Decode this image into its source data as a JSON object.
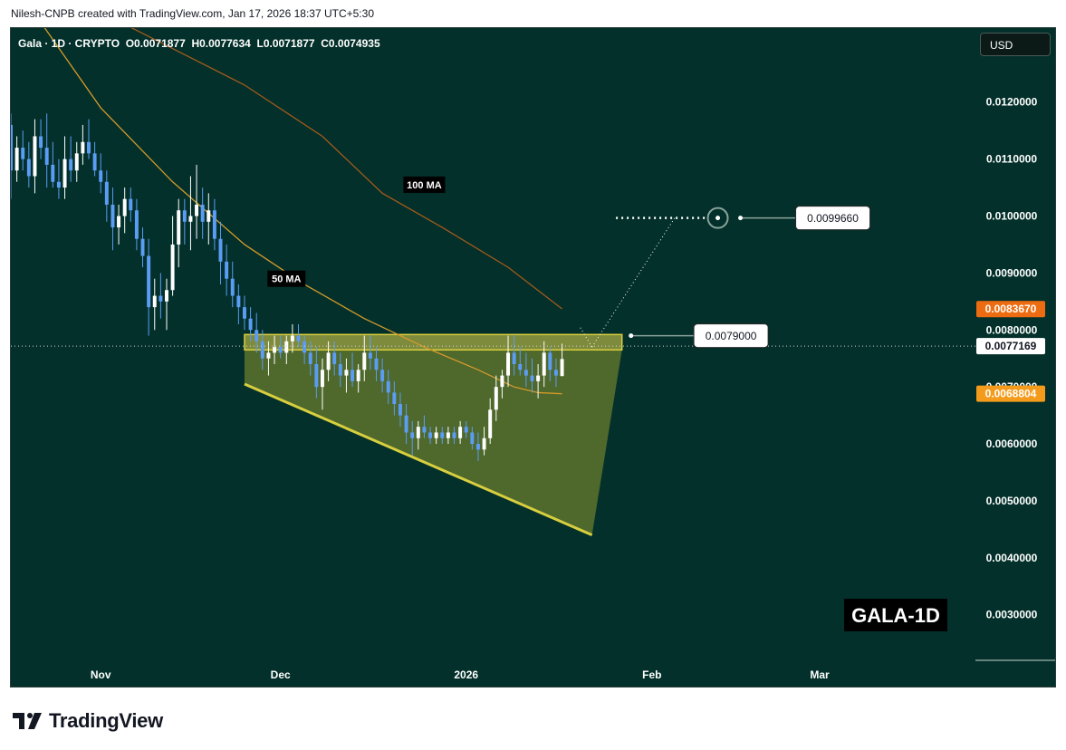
{
  "caption": "Nilesh-CNPB created with TradingView.com, Jan 17, 2026 18:37 UTC+5:30",
  "header": {
    "symbol": "Gala · 1D · CRYPTO",
    "open": "O0.0071877",
    "high": "H0.0077634",
    "low": "L0.0071877",
    "close": "C0.0074935",
    "currency": "USD"
  },
  "brand": {
    "name": "TradingView",
    "logo_icon": "tradingview-logo-icon"
  },
  "colors": {
    "background": "#03302a",
    "up_candle": "#ffffff",
    "down_candle": "#5b9cf5",
    "ma50": "#d39a2a",
    "ma100": "#a35a1c",
    "pattern_fill": "#7e8a2d",
    "pattern_line": "#d8cf3f",
    "ma100_tag": "#ee6c11",
    "ma50_tag": "#f49b1b"
  },
  "chart_data": {
    "type": "candlestick",
    "title": "GALA-1D",
    "ylim": [
      0.0022,
      0.0133
    ],
    "y_ticks": [
      "0.0030000",
      "0.0040000",
      "0.0050000",
      "0.0060000",
      "0.0070000",
      "0.0080000",
      "0.0090000",
      "0.0100000",
      "0.0110000",
      "0.0120000"
    ],
    "y_tick_values": [
      0.003,
      0.004,
      0.005,
      0.006,
      0.007,
      0.008,
      0.009,
      0.01,
      0.011,
      0.012
    ],
    "x_ticks": [
      {
        "label": "Nov",
        "date": "2025-11-01"
      },
      {
        "label": "Dec",
        "date": "2025-12-01"
      },
      {
        "label": "2026",
        "date": "2026-01-01"
      },
      {
        "label": "Feb",
        "date": "2026-02-01"
      },
      {
        "label": "Mar",
        "date": "2026-03-01"
      }
    ],
    "xlim": [
      "2025-10-17",
      "2026-03-27"
    ],
    "candles": [
      {
        "date": "2025-10-17",
        "o": 0.0116,
        "h": 0.0118,
        "l": 0.0103,
        "c": 0.0108
      },
      {
        "date": "2025-10-18",
        "o": 0.0108,
        "h": 0.0114,
        "l": 0.0106,
        "c": 0.0112
      },
      {
        "date": "2025-10-19",
        "o": 0.0112,
        "h": 0.0115,
        "l": 0.0108,
        "c": 0.011
      },
      {
        "date": "2025-10-20",
        "o": 0.011,
        "h": 0.0113,
        "l": 0.0105,
        "c": 0.0107
      },
      {
        "date": "2025-10-21",
        "o": 0.0107,
        "h": 0.0117,
        "l": 0.0104,
        "c": 0.0114
      },
      {
        "date": "2025-10-22",
        "o": 0.0114,
        "h": 0.0117,
        "l": 0.011,
        "c": 0.0112
      },
      {
        "date": "2025-10-23",
        "o": 0.0112,
        "h": 0.0118,
        "l": 0.0105,
        "c": 0.0109
      },
      {
        "date": "2025-10-24",
        "o": 0.0109,
        "h": 0.0113,
        "l": 0.0105,
        "c": 0.0106
      },
      {
        "date": "2025-10-25",
        "o": 0.0106,
        "h": 0.011,
        "l": 0.0103,
        "c": 0.0105
      },
      {
        "date": "2025-10-26",
        "o": 0.0105,
        "h": 0.0114,
        "l": 0.0103,
        "c": 0.011
      },
      {
        "date": "2025-10-27",
        "o": 0.011,
        "h": 0.0114,
        "l": 0.0106,
        "c": 0.0108
      },
      {
        "date": "2025-10-28",
        "o": 0.0108,
        "h": 0.0113,
        "l": 0.0106,
        "c": 0.0111
      },
      {
        "date": "2025-10-29",
        "o": 0.0111,
        "h": 0.0116,
        "l": 0.0109,
        "c": 0.0113
      },
      {
        "date": "2025-10-30",
        "o": 0.0113,
        "h": 0.0117,
        "l": 0.011,
        "c": 0.0111
      },
      {
        "date": "2025-10-31",
        "o": 0.0111,
        "h": 0.0113,
        "l": 0.0107,
        "c": 0.0108
      },
      {
        "date": "2025-11-01",
        "o": 0.0108,
        "h": 0.0111,
        "l": 0.0104,
        "c": 0.0106
      },
      {
        "date": "2025-11-02",
        "o": 0.0106,
        "h": 0.0108,
        "l": 0.0099,
        "c": 0.0102
      },
      {
        "date": "2025-11-03",
        "o": 0.0102,
        "h": 0.0105,
        "l": 0.0094,
        "c": 0.0098
      },
      {
        "date": "2025-11-04",
        "o": 0.0098,
        "h": 0.0102,
        "l": 0.0095,
        "c": 0.01
      },
      {
        "date": "2025-11-05",
        "o": 0.01,
        "h": 0.0105,
        "l": 0.0097,
        "c": 0.0103
      },
      {
        "date": "2025-11-06",
        "o": 0.0103,
        "h": 0.0105,
        "l": 0.0099,
        "c": 0.0101
      },
      {
        "date": "2025-11-07",
        "o": 0.0101,
        "h": 0.0103,
        "l": 0.0094,
        "c": 0.0096
      },
      {
        "date": "2025-11-08",
        "o": 0.0096,
        "h": 0.0098,
        "l": 0.0091,
        "c": 0.0093
      },
      {
        "date": "2025-11-09",
        "o": 0.0093,
        "h": 0.0096,
        "l": 0.0079,
        "c": 0.0084
      },
      {
        "date": "2025-11-10",
        "o": 0.0084,
        "h": 0.0089,
        "l": 0.008,
        "c": 0.0086
      },
      {
        "date": "2025-11-11",
        "o": 0.0086,
        "h": 0.009,
        "l": 0.0082,
        "c": 0.0085
      },
      {
        "date": "2025-11-12",
        "o": 0.0085,
        "h": 0.0089,
        "l": 0.008,
        "c": 0.0087
      },
      {
        "date": "2025-11-13",
        "o": 0.0087,
        "h": 0.01,
        "l": 0.0086,
        "c": 0.0095
      },
      {
        "date": "2025-11-14",
        "o": 0.0095,
        "h": 0.0103,
        "l": 0.0091,
        "c": 0.0101
      },
      {
        "date": "2025-11-15",
        "o": 0.0101,
        "h": 0.0103,
        "l": 0.0095,
        "c": 0.0099
      },
      {
        "date": "2025-11-16",
        "o": 0.0099,
        "h": 0.0107,
        "l": 0.0094,
        "c": 0.01
      },
      {
        "date": "2025-11-17",
        "o": 0.01,
        "h": 0.0109,
        "l": 0.0096,
        "c": 0.0102
      },
      {
        "date": "2025-11-18",
        "o": 0.0102,
        "h": 0.0105,
        "l": 0.0096,
        "c": 0.0099
      },
      {
        "date": "2025-11-19",
        "o": 0.0099,
        "h": 0.0104,
        "l": 0.0095,
        "c": 0.0101
      },
      {
        "date": "2025-11-20",
        "o": 0.0101,
        "h": 0.0103,
        "l": 0.0094,
        "c": 0.0096
      },
      {
        "date": "2025-11-21",
        "o": 0.0096,
        "h": 0.0099,
        "l": 0.0088,
        "c": 0.0092
      },
      {
        "date": "2025-11-22",
        "o": 0.0092,
        "h": 0.0095,
        "l": 0.0086,
        "c": 0.0089
      },
      {
        "date": "2025-11-23",
        "o": 0.0089,
        "h": 0.0092,
        "l": 0.0084,
        "c": 0.0086
      },
      {
        "date": "2025-11-24",
        "o": 0.0086,
        "h": 0.0088,
        "l": 0.0081,
        "c": 0.0084
      },
      {
        "date": "2025-11-25",
        "o": 0.0084,
        "h": 0.0086,
        "l": 0.008,
        "c": 0.0082
      },
      {
        "date": "2025-11-26",
        "o": 0.0082,
        "h": 0.0084,
        "l": 0.0078,
        "c": 0.008
      },
      {
        "date": "2025-11-27",
        "o": 0.008,
        "h": 0.0083,
        "l": 0.0076,
        "c": 0.0078
      },
      {
        "date": "2025-11-28",
        "o": 0.0078,
        "h": 0.008,
        "l": 0.0073,
        "c": 0.0075
      },
      {
        "date": "2025-11-29",
        "o": 0.0075,
        "h": 0.0078,
        "l": 0.0072,
        "c": 0.0076
      },
      {
        "date": "2025-11-30",
        "o": 0.0076,
        "h": 0.0079,
        "l": 0.0074,
        "c": 0.0077
      },
      {
        "date": "2025-12-01",
        "o": 0.0077,
        "h": 0.0079,
        "l": 0.0075,
        "c": 0.0076
      },
      {
        "date": "2025-12-02",
        "o": 0.0076,
        "h": 0.0079,
        "l": 0.0074,
        "c": 0.0078
      },
      {
        "date": "2025-12-03",
        "o": 0.0078,
        "h": 0.0081,
        "l": 0.0076,
        "c": 0.0079
      },
      {
        "date": "2025-12-04",
        "o": 0.0079,
        "h": 0.0081,
        "l": 0.0077,
        "c": 0.0078
      },
      {
        "date": "2025-12-05",
        "o": 0.0078,
        "h": 0.0079,
        "l": 0.0074,
        "c": 0.0076
      },
      {
        "date": "2025-12-06",
        "o": 0.0076,
        "h": 0.0078,
        "l": 0.0072,
        "c": 0.0074
      },
      {
        "date": "2025-12-07",
        "o": 0.0074,
        "h": 0.0077,
        "l": 0.0068,
        "c": 0.007
      },
      {
        "date": "2025-12-08",
        "o": 0.007,
        "h": 0.0075,
        "l": 0.0066,
        "c": 0.0073
      },
      {
        "date": "2025-12-09",
        "o": 0.0073,
        "h": 0.0078,
        "l": 0.0071,
        "c": 0.0076
      },
      {
        "date": "2025-12-10",
        "o": 0.0076,
        "h": 0.0078,
        "l": 0.0072,
        "c": 0.0074
      },
      {
        "date": "2025-12-11",
        "o": 0.0074,
        "h": 0.0076,
        "l": 0.007,
        "c": 0.0072
      },
      {
        "date": "2025-12-12",
        "o": 0.0072,
        "h": 0.0075,
        "l": 0.0069,
        "c": 0.0073
      },
      {
        "date": "2025-12-13",
        "o": 0.0073,
        "h": 0.0076,
        "l": 0.007,
        "c": 0.0071
      },
      {
        "date": "2025-12-14",
        "o": 0.0071,
        "h": 0.0074,
        "l": 0.0069,
        "c": 0.0073
      },
      {
        "date": "2025-12-15",
        "o": 0.0073,
        "h": 0.0079,
        "l": 0.0071,
        "c": 0.0076
      },
      {
        "date": "2025-12-16",
        "o": 0.0076,
        "h": 0.0079,
        "l": 0.0073,
        "c": 0.0075
      },
      {
        "date": "2025-12-17",
        "o": 0.0075,
        "h": 0.0077,
        "l": 0.0071,
        "c": 0.0073
      },
      {
        "date": "2025-12-18",
        "o": 0.0073,
        "h": 0.0075,
        "l": 0.0069,
        "c": 0.0071
      },
      {
        "date": "2025-12-19",
        "o": 0.0071,
        "h": 0.0073,
        "l": 0.0067,
        "c": 0.0069
      },
      {
        "date": "2025-12-20",
        "o": 0.0069,
        "h": 0.0071,
        "l": 0.0065,
        "c": 0.0067
      },
      {
        "date": "2025-12-21",
        "o": 0.0067,
        "h": 0.0069,
        "l": 0.0063,
        "c": 0.0065
      },
      {
        "date": "2025-12-22",
        "o": 0.0065,
        "h": 0.0067,
        "l": 0.006,
        "c": 0.0062
      },
      {
        "date": "2025-12-23",
        "o": 0.0062,
        "h": 0.0064,
        "l": 0.0058,
        "c": 0.0061
      },
      {
        "date": "2025-12-24",
        "o": 0.0061,
        "h": 0.0064,
        "l": 0.0059,
        "c": 0.0063
      },
      {
        "date": "2025-12-25",
        "o": 0.0063,
        "h": 0.0065,
        "l": 0.0061,
        "c": 0.0062
      },
      {
        "date": "2025-12-26",
        "o": 0.0062,
        "h": 0.0063,
        "l": 0.006,
        "c": 0.0061
      },
      {
        "date": "2025-12-27",
        "o": 0.0061,
        "h": 0.0063,
        "l": 0.006,
        "c": 0.0062
      },
      {
        "date": "2025-12-28",
        "o": 0.0062,
        "h": 0.0063,
        "l": 0.006,
        "c": 0.0061
      },
      {
        "date": "2025-12-29",
        "o": 0.0061,
        "h": 0.0063,
        "l": 0.006,
        "c": 0.0062
      },
      {
        "date": "2025-12-30",
        "o": 0.0062,
        "h": 0.0063,
        "l": 0.006,
        "c": 0.0061
      },
      {
        "date": "2025-12-31",
        "o": 0.0061,
        "h": 0.0064,
        "l": 0.006,
        "c": 0.0063
      },
      {
        "date": "2026-01-01",
        "o": 0.0063,
        "h": 0.0064,
        "l": 0.0061,
        "c": 0.0062
      },
      {
        "date": "2026-01-02",
        "o": 0.0062,
        "h": 0.0063,
        "l": 0.0059,
        "c": 0.006
      },
      {
        "date": "2026-01-03",
        "o": 0.006,
        "h": 0.0062,
        "l": 0.0057,
        "c": 0.0059
      },
      {
        "date": "2026-01-04",
        "o": 0.0059,
        "h": 0.0063,
        "l": 0.0058,
        "c": 0.0061
      },
      {
        "date": "2026-01-05",
        "o": 0.0061,
        "h": 0.0068,
        "l": 0.006,
        "c": 0.0066
      },
      {
        "date": "2026-01-06",
        "o": 0.0066,
        "h": 0.0072,
        "l": 0.0064,
        "c": 0.007
      },
      {
        "date": "2026-01-07",
        "o": 0.007,
        "h": 0.0073,
        "l": 0.0068,
        "c": 0.0072
      },
      {
        "date": "2026-01-08",
        "o": 0.0072,
        "h": 0.0079,
        "l": 0.007,
        "c": 0.0076
      },
      {
        "date": "2026-01-09",
        "o": 0.0076,
        "h": 0.0079,
        "l": 0.0072,
        "c": 0.0074
      },
      {
        "date": "2026-01-10",
        "o": 0.0074,
        "h": 0.0077,
        "l": 0.0072,
        "c": 0.0073
      },
      {
        "date": "2026-01-11",
        "o": 0.0073,
        "h": 0.0076,
        "l": 0.007,
        "c": 0.0072
      },
      {
        "date": "2026-01-12",
        "o": 0.0072,
        "h": 0.0075,
        "l": 0.0069,
        "c": 0.0071
      },
      {
        "date": "2026-01-13",
        "o": 0.0071,
        "h": 0.0074,
        "l": 0.0068,
        "c": 0.0072
      },
      {
        "date": "2026-01-14",
        "o": 0.0072,
        "h": 0.0078,
        "l": 0.007,
        "c": 0.0076
      },
      {
        "date": "2026-01-15",
        "o": 0.0076,
        "h": 0.0077,
        "l": 0.0071,
        "c": 0.0073
      },
      {
        "date": "2026-01-16",
        "o": 0.0073,
        "h": 0.0075,
        "l": 0.007,
        "c": 0.0072
      },
      {
        "date": "2026-01-17",
        "o": 0.00719,
        "h": 0.00776,
        "l": 0.00719,
        "c": 0.00749
      }
    ],
    "moving_averages": [
      {
        "name": "50 MA",
        "points": [
          {
            "date": "2025-10-20",
            "v": 0.0137
          },
          {
            "date": "2025-11-01",
            "v": 0.0119
          },
          {
            "date": "2025-11-13",
            "v": 0.0106
          },
          {
            "date": "2025-11-25",
            "v": 0.0095
          },
          {
            "date": "2025-12-05",
            "v": 0.0088
          },
          {
            "date": "2025-12-15",
            "v": 0.0082
          },
          {
            "date": "2025-12-25",
            "v": 0.0077
          },
          {
            "date": "2026-01-03",
            "v": 0.0073
          },
          {
            "date": "2026-01-09",
            "v": 0.007
          },
          {
            "date": "2026-01-13",
            "v": 0.0069
          },
          {
            "date": "2026-01-17",
            "v": 0.00688
          }
        ]
      },
      {
        "name": "100 MA",
        "points": [
          {
            "date": "2025-10-25",
            "v": 0.01395
          },
          {
            "date": "2025-11-10",
            "v": 0.0131
          },
          {
            "date": "2025-11-25",
            "v": 0.0123
          },
          {
            "date": "2025-12-08",
            "v": 0.0114
          },
          {
            "date": "2025-12-18",
            "v": 0.0104
          },
          {
            "date": "2025-12-28",
            "v": 0.0098
          },
          {
            "date": "2026-01-08",
            "v": 0.0091
          },
          {
            "date": "2026-01-17",
            "v": 0.00837
          }
        ]
      }
    ],
    "pattern": {
      "resistance_band": [
        0.00765,
        0.00792
      ],
      "band_dates": [
        "2025-11-25",
        "2026-01-27"
      ],
      "trend_start": {
        "date": "2025-11-25",
        "v": 0.00705
      },
      "trend_end": {
        "date": "2026-01-22",
        "v": 0.0044
      },
      "apex": {
        "date": "2026-01-27",
        "v": 0.00765
      }
    },
    "projection": {
      "start": {
        "date": "2026-01-22",
        "v": 0.0077
      },
      "end": {
        "date": "2026-02-05",
        "v": 0.01
      },
      "target_dotted_from": "2026-01-26",
      "target_marker": "2026-02-12",
      "arrow_tip": {
        "date": "2026-01-20",
        "v": 0.00805
      }
    },
    "price_line": 0.0077169,
    "annotations": [
      {
        "label": "100 MA",
        "date": "2025-12-25",
        "v": 0.01055
      },
      {
        "label": "50 MA",
        "date": "2025-12-02",
        "v": 0.0089
      },
      {
        "label": "0.0099660",
        "target": 0.009966,
        "date": "2026-02-25"
      },
      {
        "label": "0.0079000",
        "target": 0.0079,
        "date": "2026-02-08"
      }
    ],
    "tags": [
      {
        "label": "0.0083670",
        "v": 0.008367,
        "kind": "ma100"
      },
      {
        "label": "0.0077169",
        "v": 0.0077169,
        "kind": "price"
      },
      {
        "label": "0.0068804",
        "v": 0.0068804,
        "kind": "ma50"
      }
    ],
    "watermark": "GALA-1D"
  }
}
